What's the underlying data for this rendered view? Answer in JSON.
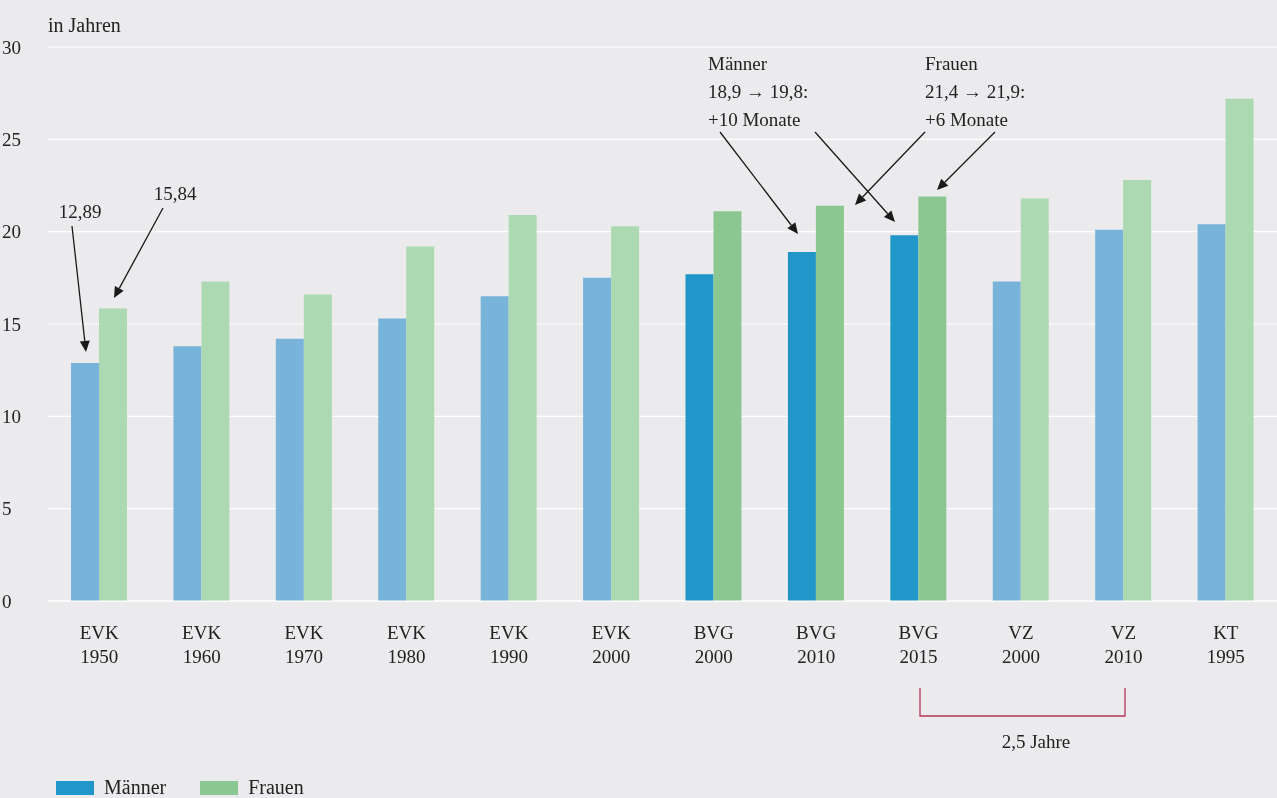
{
  "chart_data": {
    "type": "bar",
    "ylabel": "in Jahren",
    "categories": [
      "EVK 1950",
      "EVK 1960",
      "EVK 1970",
      "EVK 1980",
      "EVK 1990",
      "EVK 2000",
      "BVG 2000",
      "BVG 2010",
      "BVG 2015",
      "VZ 2000",
      "VZ 2010",
      "KT 1995"
    ],
    "series": [
      {
        "name": "Männer",
        "color": "#2196c8",
        "colors": [
          "#78b3da",
          "#78b3da",
          "#78b3da",
          "#78b3da",
          "#78b3da",
          "#78b3da",
          "#2196c8",
          "#2196c8",
          "#2196c8",
          "#78b3da",
          "#78b3da",
          "#78b3da"
        ],
        "values": [
          12.89,
          13.8,
          14.2,
          15.3,
          16.5,
          17.5,
          17.7,
          18.9,
          19.8,
          17.3,
          20.1,
          20.4
        ]
      },
      {
        "name": "Frauen",
        "color": "#8bc891",
        "colors": [
          "#acd8b2",
          "#acd8b2",
          "#acd8b2",
          "#acd8b2",
          "#acd8b2",
          "#acd8b2",
          "#8bc891",
          "#8bc891",
          "#8bc891",
          "#acd8b2",
          "#acd8b2",
          "#acd8b2"
        ],
        "values": [
          15.84,
          17.3,
          16.6,
          19.2,
          20.9,
          20.3,
          21.1,
          21.4,
          21.9,
          21.8,
          22.8,
          27.2
        ]
      }
    ],
    "ylim": [
      0,
      30
    ],
    "yticks": [
      0,
      5,
      10,
      15,
      20,
      25,
      30
    ],
    "grid": "y",
    "legend": "bottom left",
    "annotations": [
      "12,89",
      "15,84",
      "Männer\n18,9 → 19,8:\n+10 Monate",
      "Frauen\n21,4 → 21,9:\n+6 Monate",
      "2,5 Jahre"
    ]
  }
}
